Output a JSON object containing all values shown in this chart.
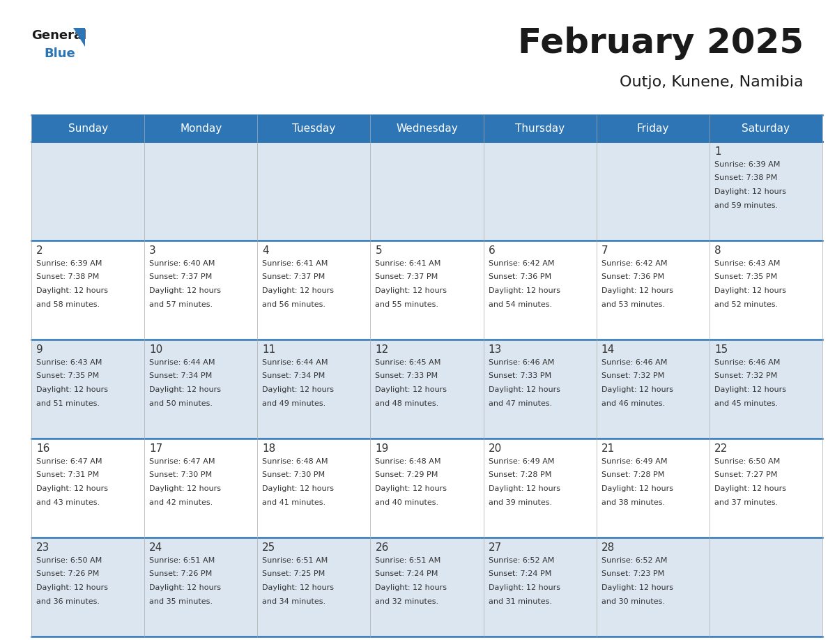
{
  "title": "February 2025",
  "subtitle": "Outjo, Kunene, Namibia",
  "days_of_week": [
    "Sunday",
    "Monday",
    "Tuesday",
    "Wednesday",
    "Thursday",
    "Friday",
    "Saturday"
  ],
  "header_bg_color": "#2e75b6",
  "header_text_color": "#ffffff",
  "row_bg_even": "#dce6f1",
  "row_bg_odd": "#ffffff",
  "cell_border_color": "#2e75b6",
  "day_number_color": "#333333",
  "info_text_color": "#333333",
  "title_color": "#1a1a1a",
  "subtitle_color": "#1a1a1a",
  "logo_general_color": "#1a1a1a",
  "logo_blue_color": "#2e75b6",
  "calendar_data": [
    [
      null,
      null,
      null,
      null,
      null,
      null,
      {
        "day": 1,
        "sunrise": "6:39 AM",
        "sunset": "7:38 PM",
        "daylight_hours": 12,
        "daylight_minutes": "59"
      }
    ],
    [
      {
        "day": 2,
        "sunrise": "6:39 AM",
        "sunset": "7:38 PM",
        "daylight_hours": 12,
        "daylight_minutes": "58"
      },
      {
        "day": 3,
        "sunrise": "6:40 AM",
        "sunset": "7:37 PM",
        "daylight_hours": 12,
        "daylight_minutes": "57"
      },
      {
        "day": 4,
        "sunrise": "6:41 AM",
        "sunset": "7:37 PM",
        "daylight_hours": 12,
        "daylight_minutes": "56"
      },
      {
        "day": 5,
        "sunrise": "6:41 AM",
        "sunset": "7:37 PM",
        "daylight_hours": 12,
        "daylight_minutes": "55"
      },
      {
        "day": 6,
        "sunrise": "6:42 AM",
        "sunset": "7:36 PM",
        "daylight_hours": 12,
        "daylight_minutes": "54"
      },
      {
        "day": 7,
        "sunrise": "6:42 AM",
        "sunset": "7:36 PM",
        "daylight_hours": 12,
        "daylight_minutes": "53"
      },
      {
        "day": 8,
        "sunrise": "6:43 AM",
        "sunset": "7:35 PM",
        "daylight_hours": 12,
        "daylight_minutes": "52"
      }
    ],
    [
      {
        "day": 9,
        "sunrise": "6:43 AM",
        "sunset": "7:35 PM",
        "daylight_hours": 12,
        "daylight_minutes": "51"
      },
      {
        "day": 10,
        "sunrise": "6:44 AM",
        "sunset": "7:34 PM",
        "daylight_hours": 12,
        "daylight_minutes": "50"
      },
      {
        "day": 11,
        "sunrise": "6:44 AM",
        "sunset": "7:34 PM",
        "daylight_hours": 12,
        "daylight_minutes": "49"
      },
      {
        "day": 12,
        "sunrise": "6:45 AM",
        "sunset": "7:33 PM",
        "daylight_hours": 12,
        "daylight_minutes": "48"
      },
      {
        "day": 13,
        "sunrise": "6:46 AM",
        "sunset": "7:33 PM",
        "daylight_hours": 12,
        "daylight_minutes": "47"
      },
      {
        "day": 14,
        "sunrise": "6:46 AM",
        "sunset": "7:32 PM",
        "daylight_hours": 12,
        "daylight_minutes": "46"
      },
      {
        "day": 15,
        "sunrise": "6:46 AM",
        "sunset": "7:32 PM",
        "daylight_hours": 12,
        "daylight_minutes": "45"
      }
    ],
    [
      {
        "day": 16,
        "sunrise": "6:47 AM",
        "sunset": "7:31 PM",
        "daylight_hours": 12,
        "daylight_minutes": "43"
      },
      {
        "day": 17,
        "sunrise": "6:47 AM",
        "sunset": "7:30 PM",
        "daylight_hours": 12,
        "daylight_minutes": "42"
      },
      {
        "day": 18,
        "sunrise": "6:48 AM",
        "sunset": "7:30 PM",
        "daylight_hours": 12,
        "daylight_minutes": "41"
      },
      {
        "day": 19,
        "sunrise": "6:48 AM",
        "sunset": "7:29 PM",
        "daylight_hours": 12,
        "daylight_minutes": "40"
      },
      {
        "day": 20,
        "sunrise": "6:49 AM",
        "sunset": "7:28 PM",
        "daylight_hours": 12,
        "daylight_minutes": "39"
      },
      {
        "day": 21,
        "sunrise": "6:49 AM",
        "sunset": "7:28 PM",
        "daylight_hours": 12,
        "daylight_minutes": "38"
      },
      {
        "day": 22,
        "sunrise": "6:50 AM",
        "sunset": "7:27 PM",
        "daylight_hours": 12,
        "daylight_minutes": "37"
      }
    ],
    [
      {
        "day": 23,
        "sunrise": "6:50 AM",
        "sunset": "7:26 PM",
        "daylight_hours": 12,
        "daylight_minutes": "36"
      },
      {
        "day": 24,
        "sunrise": "6:51 AM",
        "sunset": "7:26 PM",
        "daylight_hours": 12,
        "daylight_minutes": "35"
      },
      {
        "day": 25,
        "sunrise": "6:51 AM",
        "sunset": "7:25 PM",
        "daylight_hours": 12,
        "daylight_minutes": "34"
      },
      {
        "day": 26,
        "sunrise": "6:51 AM",
        "sunset": "7:24 PM",
        "daylight_hours": 12,
        "daylight_minutes": "32"
      },
      {
        "day": 27,
        "sunrise": "6:52 AM",
        "sunset": "7:24 PM",
        "daylight_hours": 12,
        "daylight_minutes": "31"
      },
      {
        "day": 28,
        "sunrise": "6:52 AM",
        "sunset": "7:23 PM",
        "daylight_hours": 12,
        "daylight_minutes": "30"
      },
      null
    ]
  ]
}
